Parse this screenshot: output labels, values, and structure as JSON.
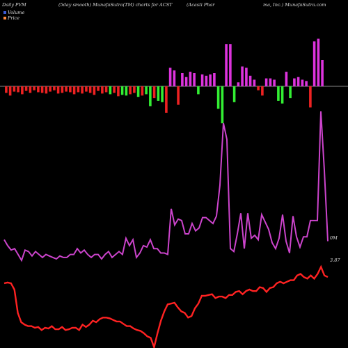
{
  "chart_data": {
    "type": "bar",
    "header": {
      "left": "Daily PVM",
      "mid": "(5day smooth) MunafaSutra(TM) charts for ACST",
      "right_a": "(Acasti  Phar",
      "right_b": "ma,  Inc.)  MunafaSutra.com"
    },
    "legend": [
      {
        "label": "Volume",
        "color": "#3b5bd6"
      },
      {
        "label": "Price",
        "color": "#ff8a3d"
      }
    ],
    "volume_tag": "0M",
    "price_tag": "3.87",
    "colors": {
      "up": "#dd33dd",
      "down_red": "#ee2222",
      "down_green": "#33ee33",
      "volume_line": "#cc44cc",
      "price_line": "#ff2222",
      "zero_line": "#888888"
    },
    "pvm_bars": [
      -10,
      -14,
      -8,
      -9,
      -12,
      -7,
      -10,
      -6,
      -9,
      -10,
      -11,
      -8,
      -6,
      -11,
      -10,
      -8,
      -9,
      -12,
      -9,
      -11,
      -8,
      -10,
      -13,
      -7,
      -11,
      -9,
      -12,
      -10,
      -15,
      -13,
      -14,
      -12,
      -10,
      -16,
      -14,
      -12,
      -30,
      -18,
      -22,
      -24,
      -40,
      28,
      24,
      -28,
      20,
      14,
      22,
      20,
      -12,
      18,
      16,
      18,
      20,
      -34,
      -56,
      64,
      64,
      -24,
      6,
      30,
      28,
      16,
      10,
      -6,
      -14,
      12,
      12,
      10,
      -22,
      -26,
      22,
      -18,
      12,
      14,
      10,
      8,
      -32,
      68,
      72,
      40
    ],
    "volume": [
      13,
      9,
      6,
      7,
      3,
      -1,
      6,
      5,
      2,
      5,
      3,
      1,
      3,
      2,
      1,
      0,
      2,
      1,
      1,
      3,
      3,
      7,
      4,
      6,
      3,
      1,
      3,
      3,
      0,
      3,
      5,
      1,
      3,
      5,
      3,
      14,
      9,
      13,
      1,
      4,
      9,
      8,
      13,
      7,
      7,
      4,
      4,
      3,
      34,
      23,
      27,
      26,
      17,
      17,
      24,
      19,
      21,
      28,
      28,
      26,
      24,
      29,
      50,
      92,
      81,
      7,
      5,
      17,
      31,
      7,
      31,
      14,
      16,
      13,
      30,
      25,
      20,
      11,
      7,
      14,
      30,
      12,
      4,
      29,
      15,
      8,
      15,
      15,
      26,
      26,
      26,
      100,
      60,
      12
    ],
    "price": [
      58,
      59,
      58,
      50,
      20,
      8,
      5,
      3,
      3,
      1,
      2,
      -2,
      1,
      0,
      3,
      -1,
      -1,
      2,
      -2,
      -1,
      1,
      1,
      -2,
      5,
      2,
      5,
      10,
      8,
      12,
      14,
      14,
      13,
      11,
      9,
      9,
      6,
      3,
      3,
      0,
      -2,
      -3,
      -6,
      -10,
      -12,
      -24,
      -6,
      10,
      22,
      31,
      32,
      33,
      27,
      22,
      20,
      14,
      16,
      26,
      32,
      42,
      42,
      43,
      44,
      39,
      41,
      41,
      39,
      43,
      43,
      47,
      48,
      44,
      48,
      50,
      48,
      48,
      53,
      52,
      47,
      52,
      53,
      58,
      60,
      58,
      60,
      62,
      62,
      68,
      70,
      66,
      64,
      68,
      64,
      70,
      79,
      68,
      66
    ]
  }
}
